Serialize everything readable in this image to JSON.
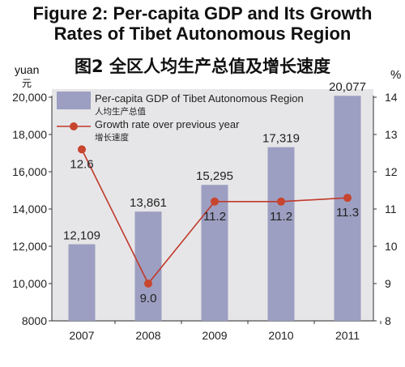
{
  "header": {
    "title_line1": "Figure 2: Per-capita GDP and Its Growth",
    "title_line2": "Rates of Tibet Autonomous Region",
    "subtitle_cn": "图2  全区人均生产总值及增长速度"
  },
  "axes": {
    "left_unit_en": "yuan",
    "left_unit_cn": "元",
    "right_unit": "%"
  },
  "colors": {
    "bar": "#9c9fc1",
    "line": "#c0392b",
    "marker": "#c8452f",
    "plot_bg": "#e6e6e8"
  },
  "chart_data": {
    "type": "bar+line",
    "categories": [
      "2007",
      "2008",
      "2009",
      "2010",
      "2011"
    ],
    "series": [
      {
        "name": "Per-capita GDP of Tibet Autonomous Region",
        "name_cn": "人均生产总值",
        "type": "bar",
        "axis": "left",
        "values": [
          12109,
          13861,
          15295,
          17319,
          20077
        ],
        "labels": [
          "12,109",
          "13,861",
          "15,295",
          "17,319",
          "20,077"
        ]
      },
      {
        "name": "Growth rate over previous year",
        "name_cn": "增长速度",
        "type": "line",
        "axis": "right",
        "values": [
          12.6,
          9.0,
          11.2,
          11.2,
          11.3
        ],
        "labels": [
          "12.6",
          "9.0",
          "11.2",
          "11.2",
          "11.3"
        ]
      }
    ],
    "y_left": {
      "ylim": [
        8000,
        20000
      ],
      "ticks": [
        8000,
        10000,
        12000,
        14000,
        16000,
        18000,
        20000
      ],
      "tick_labels": [
        "8000",
        "10,000",
        "12,000",
        "14,000",
        "16,000",
        "18,000",
        "20,000"
      ]
    },
    "y_right": {
      "ylim": [
        8,
        14
      ],
      "ticks": [
        8,
        9,
        10,
        11,
        12,
        13,
        14
      ],
      "tick_labels": [
        "8",
        "9",
        "10",
        "11",
        "12",
        "13",
        "14"
      ]
    },
    "legend_position": "top-left",
    "grid": false
  }
}
